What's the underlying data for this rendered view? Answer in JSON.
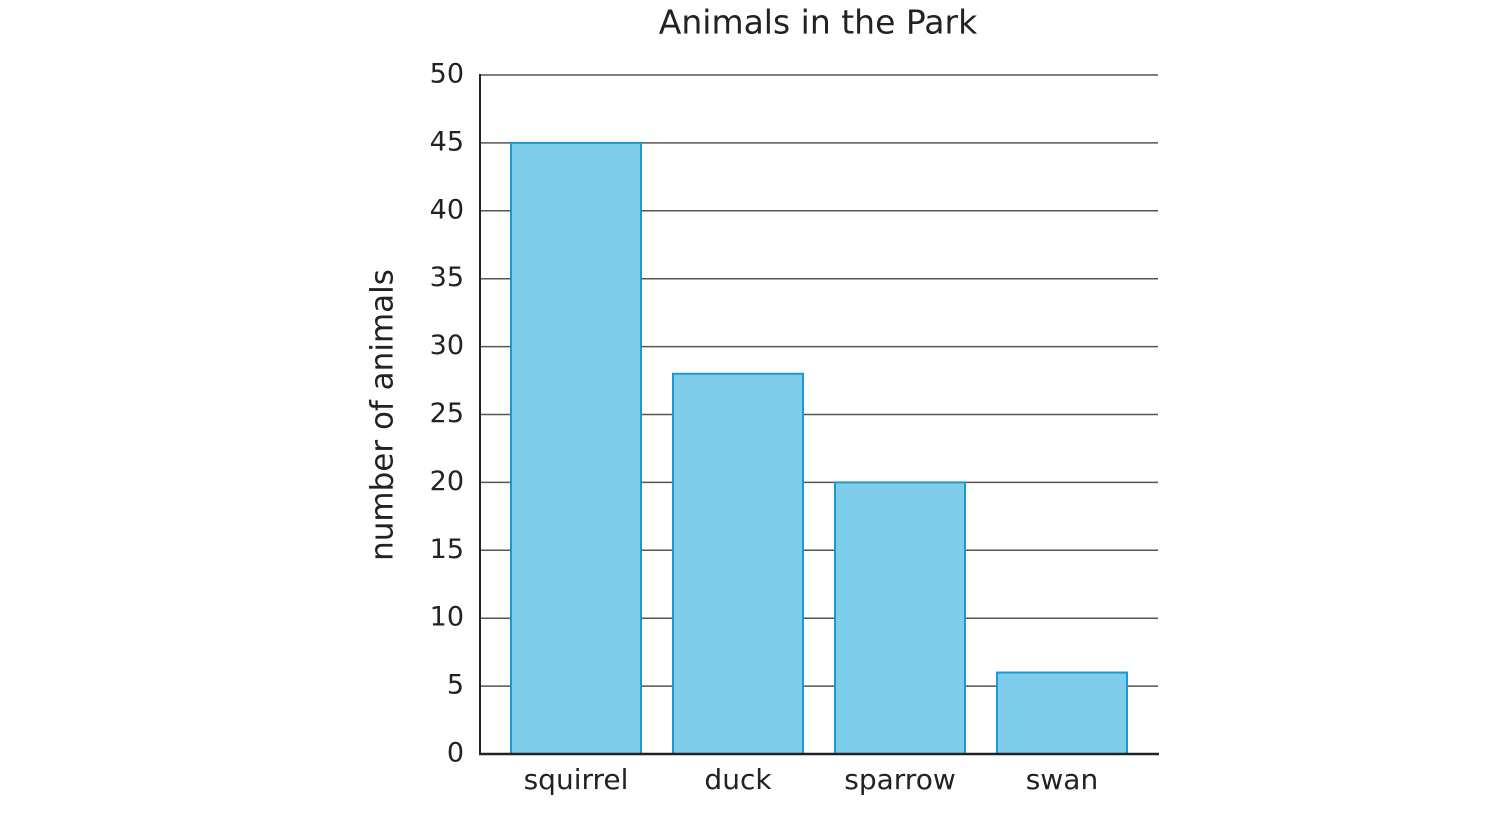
{
  "chart_data": {
    "type": "bar",
    "title": "Animals in the Park",
    "y_label": "number of animals",
    "categories": [
      "squirrel",
      "duck",
      "sparrow",
      "swan"
    ],
    "values": [
      45,
      28,
      20,
      6
    ],
    "color": "#7fcdeb",
    "edge_color": "#1e98d2",
    "ylim": [
      0,
      50
    ],
    "yticks": [
      0,
      5,
      10,
      15,
      20,
      25,
      30,
      35,
      40,
      45,
      50
    ],
    "grid": true
  }
}
